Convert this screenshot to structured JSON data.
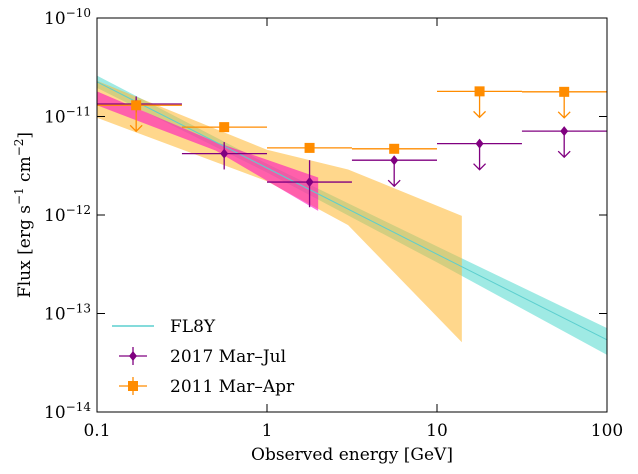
{
  "chart_data": {
    "type": "sed",
    "xlabel": "Observed energy [GeV]",
    "ylabel": "Flux [erg s−1 cm−2]",
    "xscale": "log",
    "yscale": "log",
    "xlim": [
      0.1,
      100
    ],
    "ylim": [
      1e-14,
      1e-10
    ],
    "xticks": [
      0.1,
      1,
      10,
      100
    ],
    "yticks": [
      {
        "value": 1e-14,
        "label": "10−14"
      },
      {
        "value": 1e-13,
        "label": "10−13"
      },
      {
        "value": 1e-12,
        "label": "10−12"
      },
      {
        "value": 1e-11,
        "label": "10−11"
      },
      {
        "value": 1e-10,
        "label": "10−10"
      }
    ],
    "legend": "lower left",
    "series": [
      {
        "name": "FL8Y",
        "color": "#5ccfcf",
        "band_color": "#7fe3db",
        "x": [
          0.1,
          1,
          10,
          100
        ],
        "values": [
          2.25e-11,
          3e-12,
          4e-13,
          5.4e-14
        ],
        "lower": [
          1.95e-11,
          2.7e-12,
          3.3e-13,
          3.8e-14
        ],
        "upper": [
          2.6e-11,
          3.3e-12,
          4.8e-13,
          7.1e-14
        ]
      },
      {
        "name": "2017 Mar–Jul",
        "color": "#800080",
        "marker": "diamond",
        "x": [
          0.17,
          0.56,
          1.78,
          5.6,
          17.8,
          56
        ],
        "values": [
          1.34e-11,
          4.2e-12,
          2.16e-12,
          3.6e-12,
          5.3e-12,
          7.1e-12
        ],
        "xlow": [
          0.1,
          0.316,
          1,
          3.16,
          10,
          31.6
        ],
        "xhigh": [
          0.316,
          1,
          3.16,
          10,
          31.6,
          100
        ],
        "ylow": [
          1.1e-11,
          2.9e-12,
          1.2e-12,
          null,
          null,
          null
        ],
        "yhigh": [
          1.6e-11,
          5.5e-12,
          3.6e-12,
          null,
          null,
          null
        ],
        "upper_limit": [
          false,
          false,
          false,
          true,
          true,
          true
        ]
      },
      {
        "name": "2011 Mar–Apr",
        "color": "#ff8c00",
        "marker": "square",
        "x": [
          0.17,
          0.56,
          1.78,
          5.6,
          17.8,
          56
        ],
        "values": [
          1.3e-11,
          7.8e-12,
          4.8e-12,
          4.7e-12,
          1.8e-11,
          1.78e-11
        ],
        "xlow": [
          0.1,
          0.316,
          1,
          3.16,
          10,
          31.6
        ],
        "xhigh": [
          0.316,
          1,
          3.16,
          10,
          31.6,
          100
        ],
        "ylow": [
          null,
          null,
          null,
          null,
          null,
          null
        ],
        "yhigh": [
          null,
          null,
          null,
          null,
          null,
          null
        ],
        "upper_limit": [
          true,
          false,
          false,
          false,
          true,
          true
        ]
      }
    ],
    "bands": [
      {
        "color": "#ffb62e",
        "x": [
          0.1,
          1,
          3,
          14
        ],
        "lower": [
          9.7e-12,
          2.2e-12,
          7.9e-13,
          5.1e-14
        ],
        "upper": [
          2.3e-11,
          4.6e-12,
          2.9e-12,
          9.8e-13
        ]
      },
      {
        "color": "#ff10c0",
        "x": [
          0.1,
          0.5,
          2
        ],
        "lower": [
          1.3e-11,
          4.5e-12,
          1.1e-12
        ],
        "upper": [
          1.8e-11,
          5.5e-12,
          2.4e-12
        ]
      }
    ]
  }
}
